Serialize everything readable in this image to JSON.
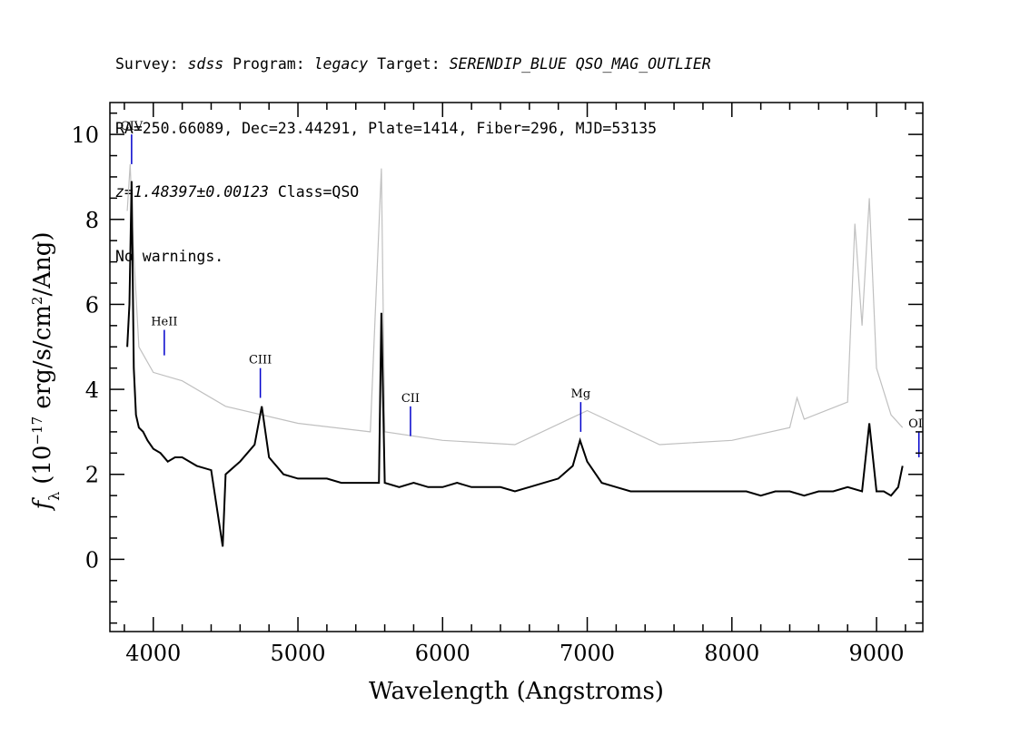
{
  "header": {
    "survey_label": "Survey:",
    "survey": "sdss",
    "program_label": "Program:",
    "program": "legacy",
    "target_label": "Target:",
    "target": "SERENDIP_BLUE QSO_MAG_OUTLIER",
    "coords": "RA=250.66089, Dec=23.44291, Plate=1414, Fiber=296, MJD=53135",
    "redshift": "z=1.48397±0.00123",
    "class": "Class=QSO",
    "warnings": "No warnings."
  },
  "chart_data": {
    "type": "line",
    "xlabel": "Wavelength (Angstroms)",
    "ylabel": {
      "symbol": "f",
      "subscript": "λ",
      "pre": "(10",
      "exponent": "−17",
      "post_a": " erg/s/cm",
      "exponent2": "2",
      "post_b": "/Ang)"
    },
    "xlim": [
      3700,
      9320
    ],
    "ylim": [
      -1.7,
      10.75
    ],
    "x_ticks": [
      4000,
      5000,
      6000,
      7000,
      8000,
      9000
    ],
    "x_tick_labels": [
      "4000",
      "5000",
      "6000",
      "7000",
      "8000",
      "9000"
    ],
    "y_ticks": [
      0,
      2,
      4,
      6,
      8,
      10
    ],
    "y_tick_labels": [
      "0",
      "2",
      "4",
      "6",
      "8",
      "10"
    ],
    "colors": {
      "flux": "#000000",
      "error": "#c0c0c0",
      "line_marker": "#0000cc"
    },
    "series": [
      {
        "role": "flux",
        "x": [
          3820,
          3835,
          3850,
          3865,
          3880,
          3900,
          3930,
          3960,
          4000,
          4050,
          4100,
          4150,
          4200,
          4300,
          4400,
          4480,
          4500,
          4600,
          4700,
          4750,
          4800,
          4900,
          5000,
          5100,
          5200,
          5300,
          5400,
          5500,
          5560,
          5577,
          5600,
          5700,
          5800,
          5900,
          6000,
          6100,
          6200,
          6300,
          6400,
          6500,
          6600,
          6700,
          6800,
          6900,
          6950,
          7000,
          7100,
          7200,
          7300,
          7400,
          7500,
          7600,
          7700,
          7800,
          7900,
          8000,
          8100,
          8200,
          8300,
          8400,
          8500,
          8600,
          8700,
          8800,
          8900,
          8950,
          9000,
          9050,
          9100,
          9150,
          9180
        ],
        "y": [
          5.0,
          6.0,
          8.9,
          4.5,
          3.4,
          3.1,
          3.0,
          2.8,
          2.6,
          2.5,
          2.3,
          2.4,
          2.4,
          2.2,
          2.1,
          0.3,
          2.0,
          2.3,
          2.7,
          3.6,
          2.4,
          2.0,
          1.9,
          1.9,
          1.9,
          1.8,
          1.8,
          1.8,
          1.8,
          5.8,
          1.8,
          1.7,
          1.8,
          1.7,
          1.7,
          1.8,
          1.7,
          1.7,
          1.7,
          1.6,
          1.7,
          1.8,
          1.9,
          2.2,
          2.8,
          2.3,
          1.8,
          1.7,
          1.6,
          1.6,
          1.6,
          1.6,
          1.6,
          1.6,
          1.6,
          1.6,
          1.6,
          1.5,
          1.6,
          1.6,
          1.5,
          1.6,
          1.6,
          1.7,
          1.6,
          3.2,
          1.6,
          1.6,
          1.5,
          1.7,
          2.2
        ]
      },
      {
        "role": "error",
        "x": [
          3820,
          3840,
          3860,
          3900,
          4000,
          4200,
          4500,
          5000,
          5500,
          5577,
          5600,
          6000,
          6500,
          7000,
          7500,
          8000,
          8400,
          8450,
          8500,
          8800,
          8850,
          8900,
          8950,
          9000,
          9100,
          9180
        ],
        "y": [
          8.2,
          9.3,
          7.5,
          5.0,
          4.4,
          4.2,
          3.6,
          3.2,
          3.0,
          9.2,
          3.0,
          2.8,
          2.7,
          3.5,
          2.7,
          2.8,
          3.1,
          3.8,
          3.3,
          3.7,
          7.9,
          5.5,
          8.5,
          4.5,
          3.4,
          3.1
        ]
      }
    ],
    "line_labels": [
      {
        "label": "CIV",
        "x": 3850,
        "y_top": 10.0,
        "y_bottom": 9.3
      },
      {
        "label": "HeII",
        "x": 4076,
        "y_top": 5.4,
        "y_bottom": 4.8
      },
      {
        "label": "CIII",
        "x": 4740,
        "y_top": 4.5,
        "y_bottom": 3.8
      },
      {
        "label": "CII",
        "x": 5778,
        "y_top": 3.6,
        "y_bottom": 2.9
      },
      {
        "label": "Mg",
        "x": 6955,
        "y_top": 3.7,
        "y_bottom": 3.0
      },
      {
        "label": "OI",
        "x": 9293,
        "y_top": 3.0,
        "y_bottom": 2.4
      }
    ]
  }
}
